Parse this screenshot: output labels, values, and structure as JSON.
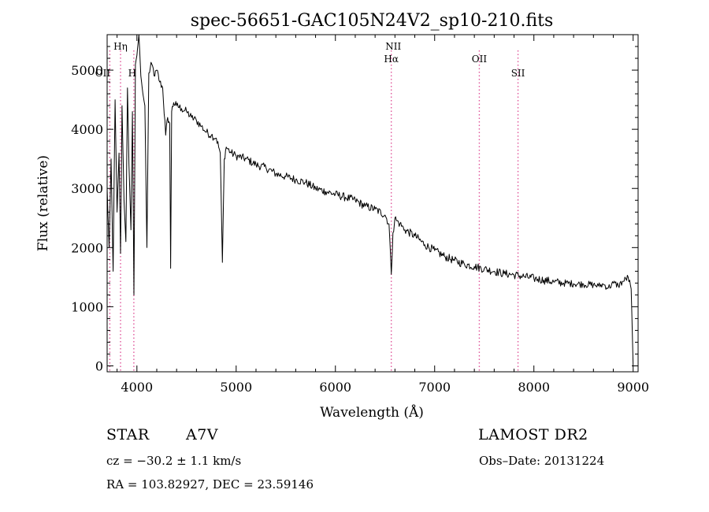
{
  "chart_data": {
    "type": "line",
    "title": "spec-56651-GAC105N24V2_sp10-210.fits",
    "xlabel": "Wavelength (Å)",
    "ylabel": "Flux (relative)",
    "xlim": [
      3700,
      9050
    ],
    "ylim": [
      -100,
      5600
    ],
    "xticks": [
      4000,
      5000,
      6000,
      7000,
      8000,
      9000
    ],
    "yticks": [
      0,
      1000,
      2000,
      3000,
      4000,
      5000
    ],
    "grid": false,
    "line_color": "#000000",
    "marker_color": "#e0559a",
    "spectral_lines": [
      {
        "label": "Hη",
        "wavelength": 3835
      },
      {
        "label": "OII",
        "wavelength": 3727
      },
      {
        "label": "H",
        "wavelength": 3969
      },
      {
        "label": "NII",
        "wavelength": 6583
      },
      {
        "label": "Hα",
        "wavelength": 6563
      },
      {
        "label": "OII",
        "wavelength": 7450
      },
      {
        "label": "SII",
        "wavelength": 7840
      }
    ],
    "series": [
      {
        "x": [
          3700,
          3720,
          3740,
          3760,
          3780,
          3800,
          3820,
          3835,
          3850,
          3870,
          3889,
          3905,
          3920,
          3940,
          3955,
          3970,
          3985,
          4000,
          4020,
          4040,
          4060,
          4080,
          4101,
          4120,
          4150,
          4180,
          4200,
          4230,
          4260,
          4290,
          4310,
          4330,
          4340,
          4350,
          4370,
          4400,
          4450,
          4500,
          4550,
          4600,
          4650,
          4700,
          4750,
          4800,
          4840,
          4861,
          4880,
          4900,
          4950,
          5000,
          5100,
          5200,
          5300,
          5400,
          5500,
          5600,
          5700,
          5800,
          5900,
          6000,
          6100,
          6200,
          6300,
          6400,
          6500,
          6540,
          6563,
          6580,
          6600,
          6620,
          6650,
          6700,
          6800,
          6900,
          7000,
          7100,
          7200,
          7300,
          7400,
          7500,
          7600,
          7700,
          7800,
          7900,
          8000,
          8100,
          8200,
          8300,
          8400,
          8500,
          8600,
          8650,
          8700,
          8750,
          8800,
          8850,
          8900,
          8950,
          8980,
          9000
        ],
        "y": [
          3000,
          2000,
          3500,
          1600,
          4500,
          2600,
          3600,
          1900,
          4400,
          2800,
          2100,
          4700,
          3400,
          2300,
          4300,
          1200,
          5100,
          5250,
          5600,
          4900,
          4600,
          4400,
          2000,
          4950,
          5100,
          4900,
          5000,
          4800,
          4700,
          3900,
          4200,
          4100,
          1650,
          4300,
          4450,
          4400,
          4350,
          4300,
          4200,
          4150,
          4050,
          3950,
          3900,
          3850,
          3600,
          1750,
          3500,
          3700,
          3600,
          3550,
          3500,
          3400,
          3350,
          3250,
          3200,
          3150,
          3100,
          3000,
          2950,
          2900,
          2850,
          2800,
          2700,
          2650,
          2550,
          2400,
          1550,
          2250,
          2500,
          2450,
          2400,
          2300,
          2200,
          2050,
          1950,
          1850,
          1780,
          1720,
          1680,
          1640,
          1600,
          1560,
          1540,
          1510,
          1480,
          1450,
          1420,
          1400,
          1390,
          1380,
          1370,
          1350,
          1380,
          1320,
          1400,
          1360,
          1430,
          1500,
          1300,
          0
        ]
      }
    ]
  },
  "info": {
    "object_type": "STAR",
    "subclass": "A7V",
    "survey": "LAMOST DR2",
    "cz": "cz = −30.2 ± 1.1 km/s",
    "obs_date": "Obs–Date: 20131224",
    "coords": "RA = 103.82927, DEC =  23.59146"
  }
}
